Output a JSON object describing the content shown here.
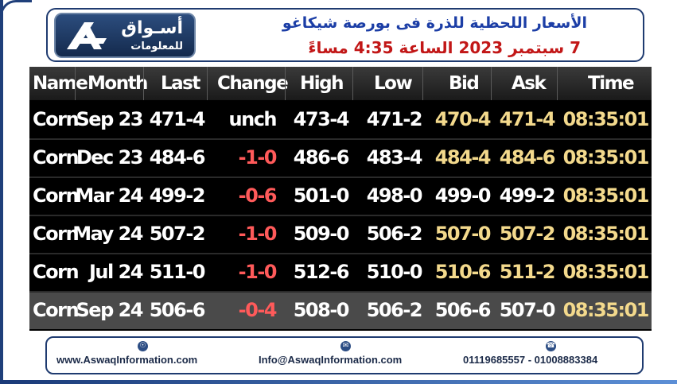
{
  "header": {
    "logo_arabic_top": "أسـواق",
    "logo_arabic_bottom": "للمعلومات",
    "title_line1": "الأسعار اللحظية للذرة فى بورصة شيكاغو",
    "title_line2": "7 سبتمبر 2023 الساعة 4:35 مساءً"
  },
  "table": {
    "columns": [
      "Name",
      "Month",
      "Last",
      "Change",
      "High",
      "Low",
      "Bid",
      "Ask",
      "Time"
    ],
    "rows": [
      {
        "name": "Corn",
        "month": "Sep 23",
        "last": "471-4",
        "change": "unch",
        "high": "473-4",
        "low": "471-2",
        "bid": "470-4",
        "ask": "471-4",
        "time": "08:35:01"
      },
      {
        "name": "Corn",
        "month": "Dec 23",
        "last": "484-6",
        "change": "-1-0",
        "high": "486-6",
        "low": "483-4",
        "bid": "484-4",
        "ask": "484-6",
        "time": "08:35:01"
      },
      {
        "name": "Corn",
        "month": "Mar 24",
        "last": "499-2",
        "change": "-0-6",
        "high": "501-0",
        "low": "498-0",
        "bid": "499-0",
        "ask": "499-2",
        "time": "08:35:01"
      },
      {
        "name": "Corn",
        "month": "May 24",
        "last": "507-2",
        "change": "-1-0",
        "high": "509-0",
        "low": "506-2",
        "bid": "507-0",
        "ask": "507-2",
        "time": "08:35:01"
      },
      {
        "name": "Corn",
        "month": "Jul 24",
        "last": "511-0",
        "change": "-1-0",
        "high": "512-6",
        "low": "510-0",
        "bid": "510-6",
        "ask": "511-2",
        "time": "08:35:01"
      },
      {
        "name": "Corn",
        "month": "Sep 24",
        "last": "506-6",
        "change": "-0-4",
        "high": "508-0",
        "low": "506-2",
        "bid": "506-6",
        "ask": "507-0",
        "time": "08:35:01"
      }
    ]
  },
  "footer": {
    "website": "www.AswaqInformation.com",
    "email": "Info@AswaqInformation.com",
    "phones": "01119685557 - 01008883384",
    "icons": [
      "globe-icon",
      "mail-icon",
      "phone-icon"
    ]
  },
  "colors": {
    "title_blue": "#1c3ea6",
    "title_red": "#c21717",
    "negative": "#ff5a5a",
    "gold": "#f3d98c",
    "navy": "#1f3b70"
  }
}
